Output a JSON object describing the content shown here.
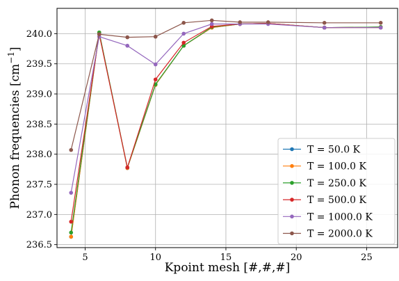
{
  "chart_data": {
    "type": "line",
    "xlabel": "Kpoint mesh [#,#,#]",
    "ylabel_main": "Phonon frequencies [cm",
    "ylabel_sup": "−1",
    "ylabel_close": "]",
    "xlim": [
      3.0,
      27.2
    ],
    "ylim": [
      236.45,
      240.42
    ],
    "xticks": [
      5,
      10,
      15,
      20,
      25
    ],
    "yticks": [
      236.5,
      237.0,
      237.5,
      238.0,
      238.5,
      239.0,
      239.5,
      240.0
    ],
    "ytick_labels": [
      "236.5",
      "237.0",
      "237.5",
      "238.0",
      "238.5",
      "239.0",
      "239.5",
      "240.0"
    ],
    "grid": true,
    "legend_position": "bottom-right",
    "x": [
      4,
      6,
      8,
      10,
      12,
      14,
      16,
      18,
      22,
      26
    ],
    "series": [
      {
        "name": "T = 50.0 K",
        "color": "#1f77b4",
        "values": [
          236.63,
          240.02,
          237.77,
          239.15,
          239.8,
          240.1,
          240.16,
          240.17,
          240.1,
          240.11
        ]
      },
      {
        "name": "T = 100.0 K",
        "color": "#ff7f0e",
        "values": [
          236.63,
          240.02,
          237.77,
          239.15,
          239.8,
          240.1,
          240.16,
          240.17,
          240.1,
          240.11
        ]
      },
      {
        "name": "T = 250.0 K",
        "color": "#2ca02c",
        "values": [
          236.7,
          240.02,
          237.78,
          239.16,
          239.8,
          240.11,
          240.16,
          240.17,
          240.1,
          240.11
        ]
      },
      {
        "name": "T = 500.0 K",
        "color": "#d62728",
        "values": [
          236.88,
          239.99,
          237.78,
          239.24,
          239.85,
          240.12,
          240.16,
          240.17,
          240.1,
          240.1
        ]
      },
      {
        "name": "T = 1000.0 K",
        "color": "#9467bd",
        "values": [
          237.36,
          239.95,
          239.8,
          239.49,
          240.0,
          240.16,
          240.16,
          240.16,
          240.1,
          240.1
        ]
      },
      {
        "name": "T = 2000.0 K",
        "color": "#8c564b",
        "values": [
          238.07,
          239.99,
          239.94,
          239.95,
          240.18,
          240.22,
          240.19,
          240.19,
          240.18,
          240.18
        ]
      }
    ]
  }
}
